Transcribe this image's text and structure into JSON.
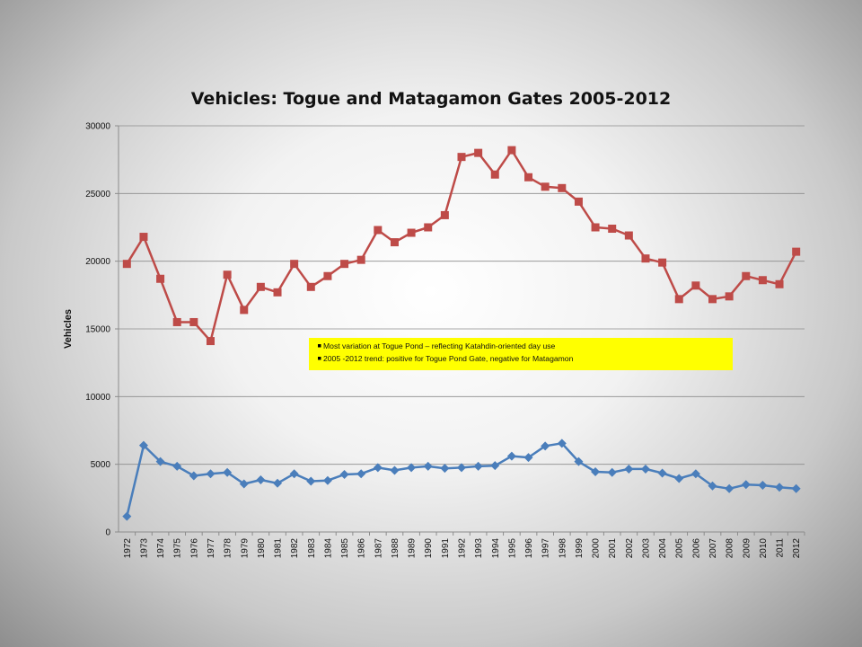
{
  "chart_data": {
    "type": "line",
    "title": "Vehicles: Togue and Matagamon Gates  2005-2012",
    "xlabel": "",
    "ylabel": "Vehicles",
    "ylim": [
      0,
      30000
    ],
    "yticks": [
      0,
      5000,
      10000,
      15000,
      20000,
      25000,
      30000
    ],
    "grid": true,
    "x": [
      1972,
      1973,
      1974,
      1975,
      1976,
      1977,
      1978,
      1979,
      1980,
      1981,
      1982,
      1983,
      1984,
      1985,
      1986,
      1987,
      1988,
      1989,
      1990,
      1991,
      1992,
      1993,
      1994,
      1995,
      1996,
      1997,
      1998,
      1999,
      2000,
      2001,
      2002,
      2003,
      2004,
      2005,
      2006,
      2007,
      2008,
      2009,
      2010,
      2011,
      2012
    ],
    "series": [
      {
        "color": "#be4b48",
        "marker": "square",
        "values": [
          19800,
          21800,
          18700,
          15500,
          15500,
          14100,
          19000,
          16400,
          18100,
          17700,
          19800,
          18100,
          18900,
          19800,
          20100,
          22300,
          21400,
          22100,
          22500,
          23400,
          27700,
          28000,
          26400,
          28200,
          26200,
          25500,
          25400,
          24400,
          22500,
          22400,
          21900,
          20200,
          19900,
          17200,
          18200,
          17200,
          17400,
          18900,
          18600,
          18300,
          20700
        ]
      },
      {
        "color": "#4a7ebb",
        "marker": "diamond",
        "values": [
          1150,
          6400,
          5200,
          4850,
          4150,
          4300,
          4400,
          3550,
          3850,
          3600,
          4300,
          3750,
          3800,
          4250,
          4300,
          4750,
          4550,
          4750,
          4850,
          4700,
          4750,
          4850,
          4900,
          5600,
          5500,
          6350,
          6550,
          5200,
          4450,
          4400,
          4650,
          4650,
          4350,
          3950,
          4300,
          3400,
          3200,
          3500,
          3450,
          3300,
          3200
        ]
      }
    ],
    "annotation": {
      "lines": [
        "Most variation at Togue Pond – reflecting Katahdin-oriented day use",
        "2005 -2012 trend: positive for Togue Pond Gate, negative for Matagamon"
      ],
      "background": "#ffff00"
    }
  }
}
